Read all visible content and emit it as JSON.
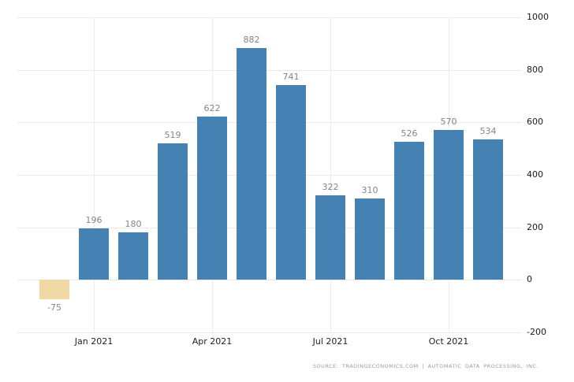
{
  "chart_data": {
    "type": "bar",
    "title": "",
    "values": [
      -75,
      196,
      180,
      519,
      622,
      882,
      741,
      322,
      310,
      526,
      570,
      534
    ],
    "value_labels": [
      "-75",
      "196",
      "180",
      "519",
      "622",
      "882",
      "741",
      "322",
      "310",
      "526",
      "570",
      "534"
    ],
    "x_ticks": [
      {
        "label": "Jan 2021",
        "bar_index": 1
      },
      {
        "label": "Apr 2021",
        "bar_index": 4
      },
      {
        "label": "Jul 2021",
        "bar_index": 7
      },
      {
        "label": "Oct 2021",
        "bar_index": 10
      }
    ],
    "y_ticks": [
      1000,
      800,
      600,
      400,
      200,
      0,
      -200
    ],
    "ylim": [
      -200,
      1000
    ],
    "grid": true,
    "legend": "none",
    "colors": {
      "bar": "#4581b2",
      "negative_bar": "#f1d9a6",
      "grid_h": "#e9e9e9",
      "grid_v": "#ededed",
      "value_label": "#858585",
      "axis_label": "#1a1a1a",
      "source_text": "#9a9a9a",
      "background": "#ffffff"
    },
    "source_text": "SOURCE: TRADINGECONOMICS.COM | AUTOMATIC DATA PROCESSING, INC."
  }
}
